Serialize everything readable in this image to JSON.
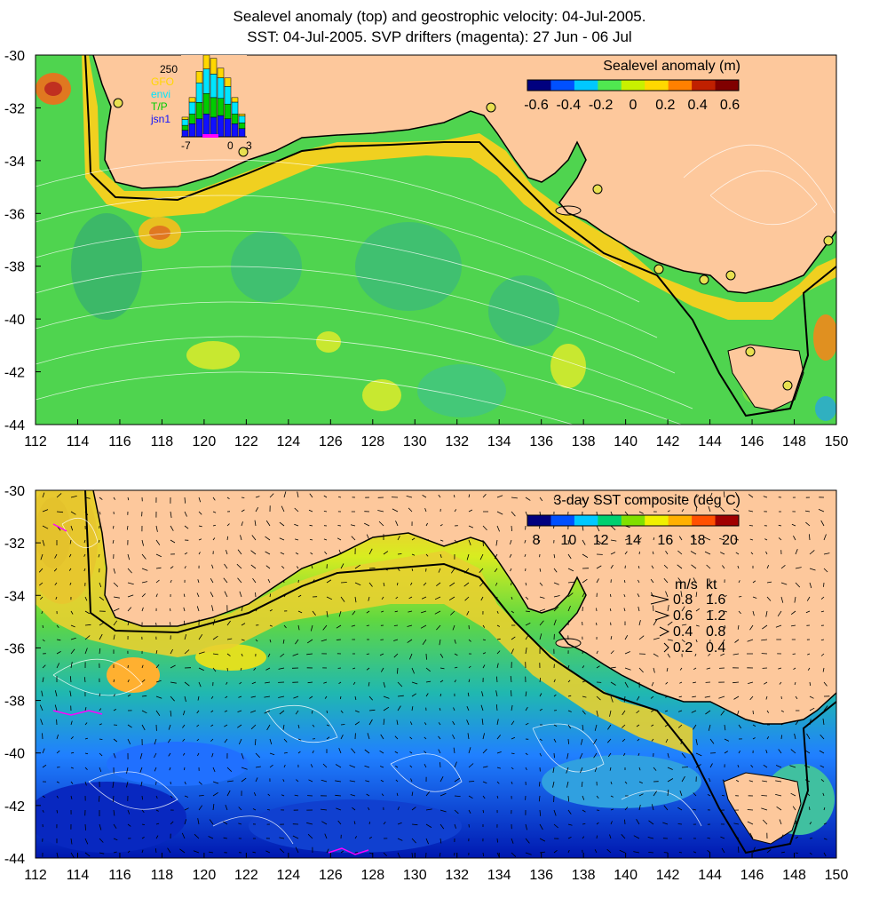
{
  "titles": {
    "line1": "Sealevel anomaly (top) and geostrophic velocity: 04-Jul-2005.",
    "line2": "SST: 04-Jul-2005. SVP drifters (magenta): 27 Jun - 06 Jul"
  },
  "map": {
    "lon_ticks": [
      "112",
      "114",
      "116",
      "118",
      "120",
      "122",
      "124",
      "126",
      "128",
      "130",
      "132",
      "134",
      "136",
      "138",
      "140",
      "142",
      "144",
      "146",
      "148",
      "150"
    ],
    "lat_ticks": [
      "-30",
      "-32",
      "-34",
      "-36",
      "-38",
      "-40",
      "-42",
      "-44"
    ],
    "lon_range": [
      112,
      150
    ],
    "lat_range": [
      -44,
      -30
    ]
  },
  "top_panel": {
    "colorbar_title": "Sealevel anomaly (m)",
    "colorbar_ticks": [
      "-0.6",
      "-0.4",
      "-0.2",
      "0",
      "0.2",
      "0.4",
      "0.6"
    ],
    "colorbar_colors": [
      "#00007f",
      "#0050ff",
      "#00c8ff",
      "#50e850",
      "#c8f000",
      "#ffd800",
      "#ff8000",
      "#c02000",
      "#800000"
    ],
    "histogram": {
      "ymax_label": "250",
      "x_labels": [
        "-7",
        "0",
        "3"
      ],
      "legend": [
        {
          "label": "GFO",
          "color": "#ffd700"
        },
        {
          "label": "envi",
          "color": "#00e5ff"
        },
        {
          "label": "T/P",
          "color": "#00cc00"
        },
        {
          "label": "jsn1",
          "color": "#1010ff"
        }
      ],
      "bars_total": [
        60,
        120,
        200,
        250,
        240,
        210,
        180,
        120,
        70
      ],
      "bars_jsn1": [
        20,
        40,
        55,
        70,
        60,
        65,
        55,
        40,
        25
      ]
    }
  },
  "bottom_panel": {
    "colorbar_title": "3-day SST composite (deg C)",
    "colorbar_ticks": [
      "8",
      "10",
      "12",
      "14",
      "16",
      "18",
      "20"
    ],
    "colorbar_colors": [
      "#00007f",
      "#0050ff",
      "#00c8ff",
      "#00d070",
      "#80e000",
      "#f0f000",
      "#ffb000",
      "#ff5000",
      "#a00000"
    ],
    "velocity_legend": {
      "header_ms": "m/s",
      "header_kt": "kt",
      "rows": [
        {
          "ms": "0.8",
          "kt": "1.6"
        },
        {
          "ms": "0.6",
          "kt": "1.2"
        },
        {
          "ms": "0.4",
          "kt": "0.8"
        },
        {
          "ms": "0.2",
          "kt": "0.4"
        }
      ]
    }
  },
  "colors": {
    "land": "#fdc89c",
    "ocean_sla": "#4fd44f",
    "coastline": "#000000"
  }
}
